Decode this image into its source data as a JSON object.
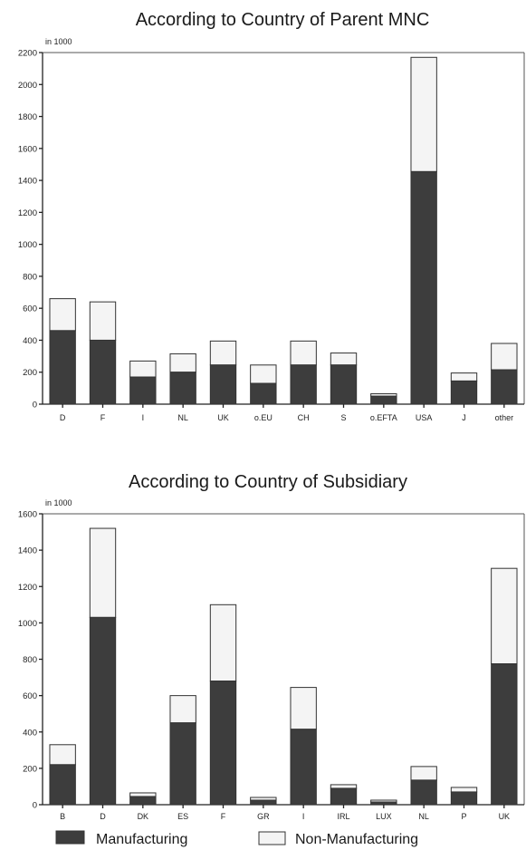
{
  "legend": {
    "manufacturing": "Manufacturing",
    "non_manufacturing": "Non-Manufacturing"
  },
  "colors": {
    "manufacturing": "#3d3d3d",
    "non_manufacturing": "#f4f4f4",
    "outline": "#333333"
  },
  "chart_data": [
    {
      "type": "bar",
      "stacked": true,
      "title": "According to Country of Parent MNC",
      "unit_label": "in 1000",
      "xlabel": "",
      "ylabel": "",
      "ylim": [
        0,
        2200
      ],
      "yticks": [
        0,
        200,
        400,
        600,
        800,
        1000,
        1200,
        1400,
        1600,
        1800,
        2000,
        2200
      ],
      "grid": false,
      "legend_position": "bottom",
      "categories": [
        "D",
        "F",
        "I",
        "NL",
        "UK",
        "o.EU",
        "CH",
        "S",
        "o.EFTA",
        "USA",
        "J",
        "other"
      ],
      "series": [
        {
          "name": "Manufacturing",
          "values": [
            460,
            400,
            170,
            200,
            245,
            130,
            245,
            245,
            50,
            1455,
            145,
            215
          ]
        },
        {
          "name": "Non-Manufacturing",
          "values": [
            200,
            240,
            100,
            115,
            150,
            115,
            150,
            75,
            15,
            715,
            50,
            165
          ]
        }
      ]
    },
    {
      "type": "bar",
      "stacked": true,
      "title": "According to Country of Subsidiary",
      "unit_label": "in 1000",
      "xlabel": "",
      "ylabel": "",
      "ylim": [
        0,
        1600
      ],
      "yticks": [
        0,
        200,
        400,
        600,
        800,
        1000,
        1200,
        1400,
        1600
      ],
      "grid": false,
      "legend_position": "bottom",
      "categories": [
        "B",
        "D",
        "DK",
        "ES",
        "F",
        "GR",
        "I",
        "IRL",
        "LUX",
        "NL",
        "P",
        "UK"
      ],
      "series": [
        {
          "name": "Manufacturing",
          "values": [
            220,
            1030,
            45,
            450,
            680,
            25,
            415,
            90,
            15,
            135,
            70,
            775
          ]
        },
        {
          "name": "Non-Manufacturing",
          "values": [
            110,
            490,
            20,
            150,
            420,
            15,
            230,
            20,
            10,
            75,
            25,
            525
          ]
        }
      ]
    }
  ]
}
